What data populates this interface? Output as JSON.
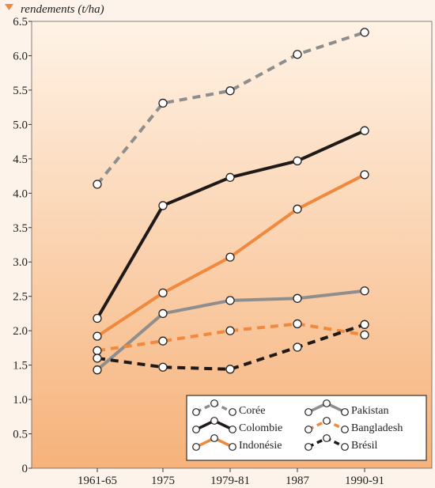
{
  "chart_data": {
    "type": "line",
    "ylabel": "rendements (t/ha)",
    "xlabel": "",
    "categories": [
      "1961-65",
      "1975",
      "1979-81",
      "1987",
      "1990-91"
    ],
    "ylim": [
      0,
      6.5
    ],
    "yticks": [
      "0",
      "0.5",
      "1.0",
      "1.5",
      "2.0",
      "2.5",
      "3.0",
      "3.5",
      "4.0",
      "4.5",
      "5.0",
      "5.5",
      "6.0",
      "6.5"
    ],
    "grid": false,
    "legend_position": "bottom-right",
    "series": [
      {
        "name": "Corée",
        "values": [
          4.13,
          5.31,
          5.49,
          6.02,
          6.34
        ],
        "color": "#8e8e8e",
        "dashed": true
      },
      {
        "name": "Colombie",
        "values": [
          2.18,
          3.82,
          4.23,
          4.47,
          4.91
        ],
        "color": "#1f1a17",
        "dashed": false
      },
      {
        "name": "Indonésie",
        "values": [
          1.92,
          2.55,
          3.07,
          3.77,
          4.27
        ],
        "color": "#f0883e",
        "dashed": false
      },
      {
        "name": "Pakistan",
        "values": [
          1.43,
          2.25,
          2.44,
          2.47,
          2.58
        ],
        "color": "#8e8e8e",
        "dashed": false
      },
      {
        "name": "Bangladesh",
        "values": [
          1.71,
          1.85,
          2.0,
          2.1,
          1.94
        ],
        "color": "#f0883e",
        "dashed": true
      },
      {
        "name": "Brésil",
        "values": [
          1.6,
          1.47,
          1.44,
          1.76,
          2.09
        ],
        "color": "#1f1a17",
        "dashed": true
      }
    ],
    "legend_layout": [
      [
        "Corée",
        "Pakistan"
      ],
      [
        "Colombie",
        "Bangladesh"
      ],
      [
        "Indonésie",
        "Brésil"
      ]
    ]
  },
  "style": {
    "marker_color": "#f0883e",
    "axis_color": "#333333",
    "gradient_top": "#fff3e6",
    "gradient_bottom": "#f6b27a"
  }
}
